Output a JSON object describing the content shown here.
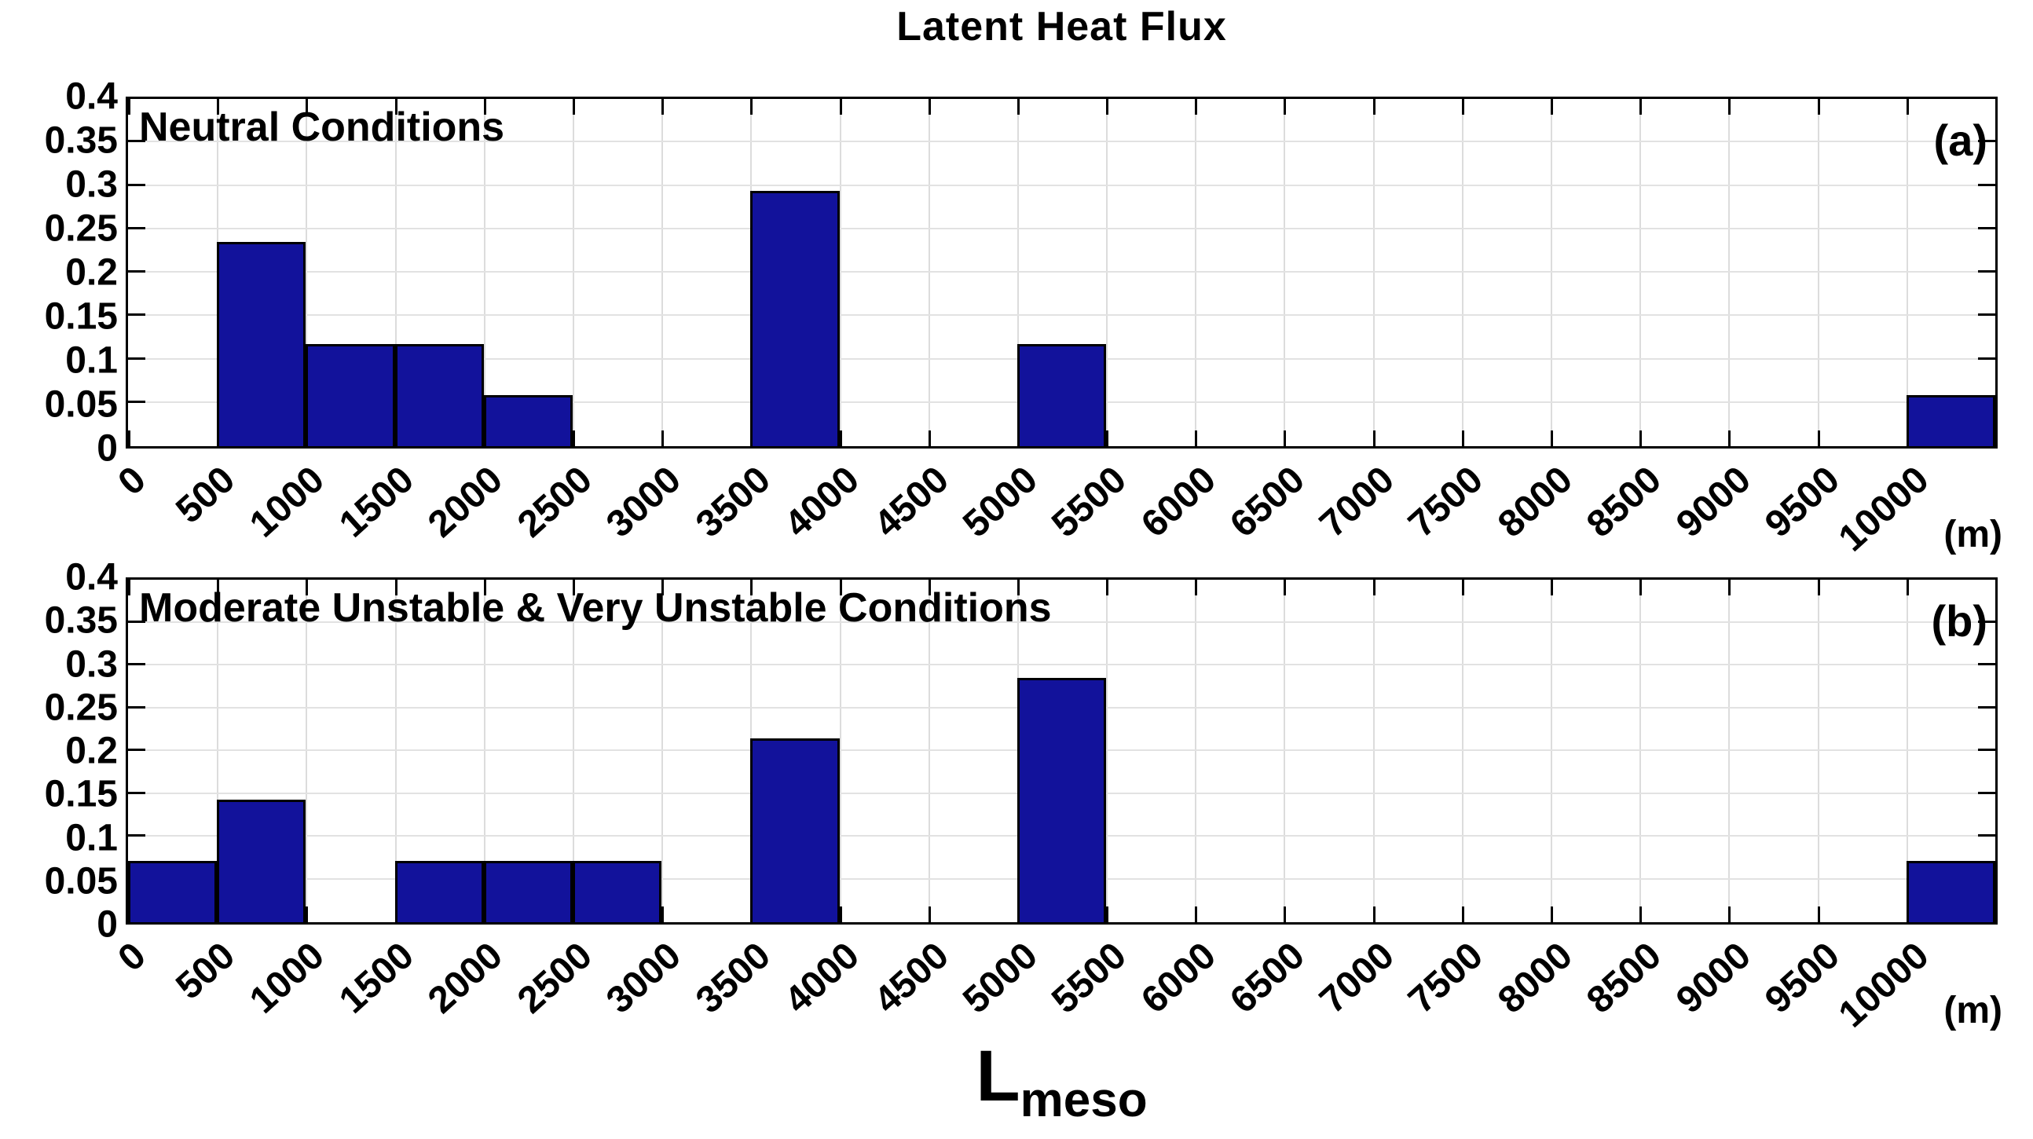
{
  "figure_title": "Latent Heat Flux",
  "colors": {
    "bar_fill": "#12129B",
    "bar_edge": "#000000",
    "axis": "#000000",
    "grid": "#dcdcdc"
  },
  "axes": {
    "x_tick_labels": [
      "0",
      "500",
      "1000",
      "1500",
      "2000",
      "2500",
      "3000",
      "3500",
      "4000",
      "4500",
      "5000",
      "5500",
      "6000",
      "6500",
      "7000",
      "7500",
      "8000",
      "8500",
      "9000",
      "9500",
      "10000"
    ],
    "y_tick_labels": [
      "0.4",
      "0.35",
      "0.3",
      "0.25",
      "0.2",
      "0.15",
      "0.1",
      "0.05",
      "0"
    ],
    "unit_label": "(m)",
    "xlabel_main": "L",
    "xlabel_subscript": "meso"
  },
  "chart_data": [
    {
      "type": "bar",
      "panel_label": "(a)",
      "title": "Neutral Conditions",
      "xlim": [
        0,
        10500
      ],
      "ylim": [
        0,
        0.4
      ],
      "x_tick_step": 500,
      "y_tick_step": 0.05,
      "bin_width": 500,
      "grid": true,
      "bars": [
        {
          "bin_start": 500,
          "value": 0.2353
        },
        {
          "bin_start": 1000,
          "value": 0.1176
        },
        {
          "bin_start": 1500,
          "value": 0.1176
        },
        {
          "bin_start": 2000,
          "value": 0.0588
        },
        {
          "bin_start": 3500,
          "value": 0.2941
        },
        {
          "bin_start": 5000,
          "value": 0.1176
        },
        {
          "bin_start": 10000,
          "value": 0.0588
        }
      ]
    },
    {
      "type": "bar",
      "panel_label": "(b)",
      "title": "Moderate Unstable & Very Unstable Conditions",
      "xlim": [
        0,
        10500
      ],
      "ylim": [
        0,
        0.4
      ],
      "x_tick_step": 500,
      "y_tick_step": 0.05,
      "bin_width": 500,
      "grid": true,
      "bars": [
        {
          "bin_start": 0,
          "value": 0.0714
        },
        {
          "bin_start": 500,
          "value": 0.1429
        },
        {
          "bin_start": 1500,
          "value": 0.0714
        },
        {
          "bin_start": 2000,
          "value": 0.0714
        },
        {
          "bin_start": 2500,
          "value": 0.0714
        },
        {
          "bin_start": 3500,
          "value": 0.2143
        },
        {
          "bin_start": 5000,
          "value": 0.2857
        },
        {
          "bin_start": 10000,
          "value": 0.0714
        }
      ]
    }
  ]
}
